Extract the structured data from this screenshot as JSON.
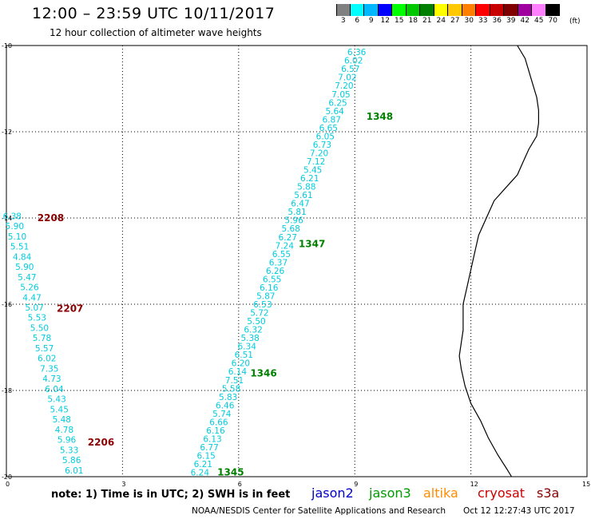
{
  "header": {
    "title": "12:00 – 23:59 UTC 10/11/2017",
    "subtitle": "12 hour collection of altimeter wave heights"
  },
  "legend": {
    "labels": [
      "3",
      "6",
      "9",
      "12",
      "15",
      "18",
      "21",
      "24",
      "27",
      "30",
      "33",
      "36",
      "39",
      "42",
      "45",
      "70"
    ],
    "colors": [
      "#808080",
      "#00ffff",
      "#00b8ff",
      "#0000ff",
      "#00ff00",
      "#00c800",
      "#008000",
      "#ffff00",
      "#ffc800",
      "#ff8000",
      "#ff0000",
      "#c80000",
      "#800000",
      "#a000a0",
      "#ff80ff",
      "#000000"
    ],
    "units": "(ft)"
  },
  "map": {
    "lon_range": [
      0,
      15
    ],
    "lat_range": [
      -20,
      -10
    ],
    "x_tick_labels": [
      "0",
      "3",
      "6",
      "9",
      "12",
      "15"
    ],
    "y_tick_labels": [
      "-10",
      "-12",
      "-14",
      "-16",
      "-18",
      "-20"
    ],
    "track_color": "#00ccdd",
    "jason3_color": "#008000",
    "cryosat_color": "#8b0000"
  },
  "tracks": [
    {
      "satellite": "jason3",
      "start": [
        9.05,
        -10.15
      ],
      "end": [
        5.0,
        -19.9
      ],
      "values": [
        "6.36",
        "6.02",
        "6.57",
        "7.02",
        "7.20",
        "7.05",
        "6.25",
        "5.64",
        "6.87",
        "6.65",
        "6.05",
        "6.73",
        "7.20",
        "7.12",
        "5.45",
        "6.21",
        "5.88",
        "5.61",
        "6.47",
        "5.81",
        "5.96",
        "5.68",
        "6.27",
        "7.24",
        "6.55",
        "6.37",
        "6.26",
        "6.55",
        "6.16",
        "5.87",
        "6.53",
        "5.72",
        "5.50",
        "6.32",
        "5.38",
        "6.34",
        "6.51",
        "6.20",
        "6.14",
        "7.51",
        "5.58",
        "5.83",
        "6.46",
        "5.74",
        "6.66",
        "6.16",
        "6.13",
        "6.77",
        "6.15",
        "6.21",
        "6.24"
      ],
      "time_labels": [
        {
          "text": "1348",
          "lat": -11.65,
          "lon": 9.3
        },
        {
          "text": "1347",
          "lat": -14.6,
          "lon": 7.55
        },
        {
          "text": "1346",
          "lat": -17.6,
          "lon": 6.3
        },
        {
          "text": "1345",
          "lat": -19.9,
          "lon": 5.45
        }
      ]
    },
    {
      "satellite": "cryosat",
      "start": [
        0.15,
        -13.95
      ],
      "end": [
        1.75,
        -19.85
      ],
      "values": [
        "6.38",
        "5.90",
        "5.10",
        "5.51",
        "4.84",
        "5.90",
        "5.47",
        "5.26",
        "4.47",
        "5.07",
        "5.53",
        "5.50",
        "5.78",
        "5.57",
        "6.02",
        "7.35",
        "4.73",
        "6.04",
        "5.43",
        "5.45",
        "5.48",
        "4.78",
        "5.96",
        "5.33",
        "5.86",
        "6.01"
      ],
      "time_labels": [
        {
          "text": "2208",
          "lat": -14.0,
          "lon": 0.8
        },
        {
          "text": "2207",
          "lat": -16.1,
          "lon": 1.3
        },
        {
          "text": "2206",
          "lat": -19.2,
          "lon": 2.1
        }
      ]
    }
  ],
  "coastline_lonlat": [
    [
      13.2,
      -10.0
    ],
    [
      13.4,
      -10.3
    ],
    [
      13.5,
      -10.6
    ],
    [
      13.6,
      -10.9
    ],
    [
      13.7,
      -11.2
    ],
    [
      13.75,
      -11.5
    ],
    [
      13.75,
      -11.8
    ],
    [
      13.7,
      -12.1
    ],
    [
      13.5,
      -12.4
    ],
    [
      13.35,
      -12.7
    ],
    [
      13.2,
      -13.0
    ],
    [
      12.9,
      -13.3
    ],
    [
      12.6,
      -13.6
    ],
    [
      12.4,
      -14.0
    ],
    [
      12.2,
      -14.4
    ],
    [
      12.1,
      -14.8
    ],
    [
      12.0,
      -15.2
    ],
    [
      11.9,
      -15.6
    ],
    [
      11.8,
      -16.0
    ],
    [
      11.8,
      -16.3
    ],
    [
      11.8,
      -16.6
    ],
    [
      11.75,
      -16.9
    ],
    [
      11.7,
      -17.2
    ],
    [
      11.75,
      -17.5
    ],
    [
      11.85,
      -17.9
    ],
    [
      12.0,
      -18.3
    ],
    [
      12.25,
      -18.7
    ],
    [
      12.45,
      -19.1
    ],
    [
      12.7,
      -19.5
    ],
    [
      12.95,
      -19.85
    ],
    [
      13.05,
      -20.0
    ]
  ],
  "footer": {
    "note": "note:  1) Time is in UTC;  2) SWH is in feet",
    "satellites": [
      {
        "name": "jason2",
        "color": "#0000cc"
      },
      {
        "name": "jason3",
        "color": "#009900"
      },
      {
        "name": "altika",
        "color": "#ff8c00"
      },
      {
        "name": "cryosat",
        "color": "#cc0000"
      },
      {
        "name": "s3a",
        "color": "#8b0000"
      }
    ],
    "credit": "NOAA/NESDIS Center for Satellite Applications and Research",
    "timestamp": "Oct 12 12:27:43 UTC 2017"
  }
}
